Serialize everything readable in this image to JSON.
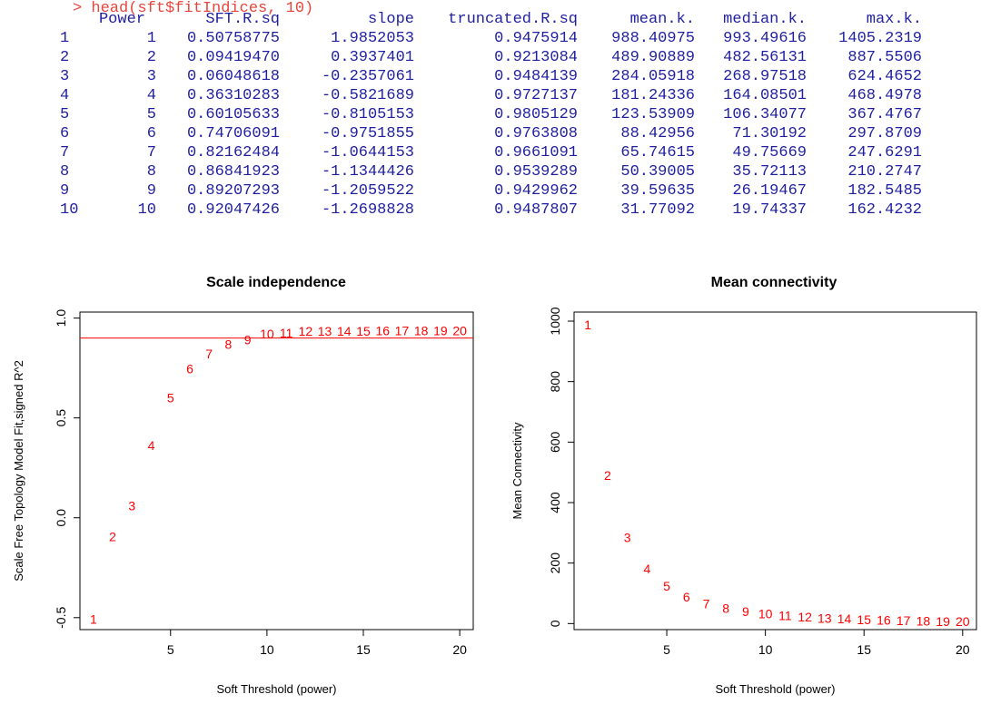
{
  "console": {
    "command": "> head(sft$fitIndices, 10)",
    "headers": [
      "Power",
      "SFT.R.sq",
      "slope",
      "truncated.R.sq",
      "mean.k.",
      "median.k.",
      "max.k."
    ],
    "rows": [
      [
        "1",
        "1",
        "0.50758775",
        "1.9852053",
        "0.9475914",
        "988.40975",
        "993.49616",
        "1405.2319"
      ],
      [
        "2",
        "2",
        "0.09419470",
        "0.3937401",
        "0.9213084",
        "489.90889",
        "482.56131",
        "887.5506"
      ],
      [
        "3",
        "3",
        "0.06048618",
        "-0.2357061",
        "0.9484139",
        "284.05918",
        "268.97518",
        "624.4652"
      ],
      [
        "4",
        "4",
        "0.36310283",
        "-0.5821689",
        "0.9727137",
        "181.24336",
        "164.08501",
        "468.4978"
      ],
      [
        "5",
        "5",
        "0.60105633",
        "-0.8105153",
        "0.9805129",
        "123.53909",
        "106.34077",
        "367.4767"
      ],
      [
        "6",
        "6",
        "0.74706091",
        "-0.9751855",
        "0.9763808",
        "88.42956",
        "71.30192",
        "297.8709"
      ],
      [
        "7",
        "7",
        "0.82162484",
        "-1.0644153",
        "0.9661091",
        "65.74615",
        "49.75669",
        "247.6291"
      ],
      [
        "8",
        "8",
        "0.86841923",
        "-1.1344426",
        "0.9539289",
        "50.39005",
        "35.72113",
        "210.2747"
      ],
      [
        "9",
        "9",
        "0.89207293",
        "-1.2059522",
        "0.9429962",
        "39.59635",
        "26.19467",
        "182.5485"
      ],
      [
        "10",
        "10",
        "0.92047426",
        "-1.2698828",
        "0.9487807",
        "31.77092",
        "19.74337",
        "162.4232"
      ]
    ]
  },
  "colors": {
    "command": "#e8453c",
    "output": "#1f1fa0",
    "points": "#ff0000",
    "hline": "#ff0000",
    "axis": "#000000"
  },
  "chart_data": [
    {
      "type": "scatter",
      "title": "Scale independence",
      "xlabel": "Soft Threshold (power)",
      "ylabel": "Scale Free Topology Model Fit,signed R^2",
      "xlim": [
        0.3,
        20.7
      ],
      "ylim": [
        -0.56,
        1.03
      ],
      "xticks": [
        5,
        10,
        15,
        20
      ],
      "yticks": [
        -0.5,
        0.0,
        0.5,
        1.0
      ],
      "ytick_labels": [
        "-0.5",
        "0.0",
        "0.5",
        "1.0"
      ],
      "hline": 0.9,
      "grid": false,
      "point_labels": [
        "1",
        "2",
        "3",
        "4",
        "5",
        "6",
        "7",
        "8",
        "9",
        "10",
        "11",
        "12",
        "13",
        "14",
        "15",
        "16",
        "17",
        "18",
        "19",
        "20"
      ],
      "x": [
        1,
        2,
        3,
        4,
        5,
        6,
        7,
        8,
        9,
        10,
        11,
        12,
        13,
        14,
        15,
        16,
        17,
        18,
        19,
        20
      ],
      "y": [
        -0.508,
        -0.094,
        0.06,
        0.363,
        0.601,
        0.747,
        0.822,
        0.868,
        0.892,
        0.92,
        0.926,
        0.935,
        0.935,
        0.935,
        0.935,
        0.938,
        0.938,
        0.938,
        0.938,
        0.938
      ]
    },
    {
      "type": "scatter",
      "title": "Mean connectivity",
      "xlabel": "Soft Threshold (power)",
      "ylabel": "Mean Connectivity",
      "xlim": [
        0.3,
        20.7
      ],
      "ylim": [
        -20,
        1030
      ],
      "xticks": [
        5,
        10,
        15,
        20
      ],
      "yticks": [
        0,
        200,
        400,
        600,
        800,
        1000
      ],
      "ytick_labels": [
        "0",
        "200",
        "400",
        "600",
        "800",
        "1000"
      ],
      "grid": false,
      "point_labels": [
        "1",
        "2",
        "3",
        "4",
        "5",
        "6",
        "7",
        "8",
        "9",
        "10",
        "11",
        "12",
        "13",
        "14",
        "15",
        "16",
        "17",
        "18",
        "19",
        "20"
      ],
      "x": [
        1,
        2,
        3,
        4,
        5,
        6,
        7,
        8,
        9,
        10,
        11,
        12,
        13,
        14,
        15,
        16,
        17,
        18,
        19,
        20
      ],
      "y": [
        988.4,
        489.9,
        284.1,
        181.2,
        123.5,
        88.4,
        65.7,
        50.4,
        39.6,
        31.8,
        26.0,
        21.6,
        18.1,
        15.4,
        13.2,
        11.4,
        9.9,
        8.7,
        7.7,
        6.8
      ]
    }
  ]
}
